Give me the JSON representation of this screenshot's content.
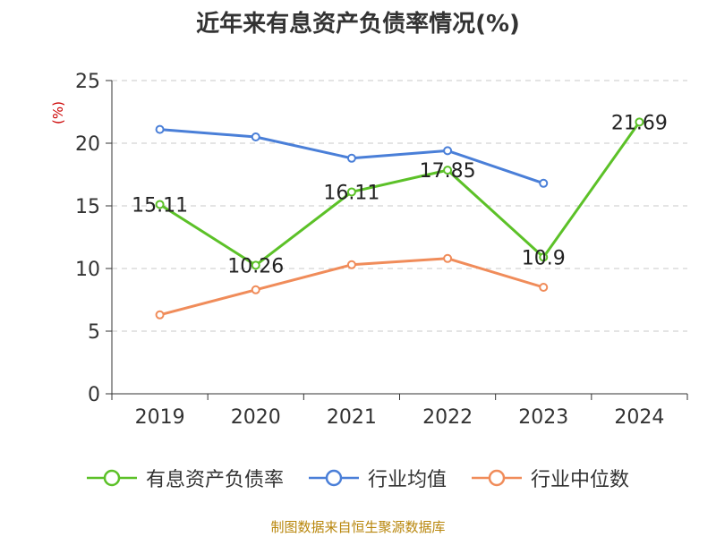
{
  "chart_data": {
    "type": "line",
    "title": "近年来有息资产负债率情况(%)",
    "ylabel": "(%)",
    "xlabel": "",
    "categories": [
      "2019",
      "2020",
      "2021",
      "2022",
      "2023",
      "2024"
    ],
    "ylim": [
      0,
      25
    ],
    "yticks": [
      0,
      5,
      10,
      15,
      20,
      25
    ],
    "grid": "horizontal-dashed",
    "legend_position": "bottom",
    "series": [
      {
        "name": "有息资产负债率",
        "color": "#5cc128",
        "values": [
          15.11,
          10.26,
          16.11,
          17.85,
          10.9,
          21.69
        ],
        "labels": [
          "15.11",
          "10.26",
          "16.11",
          "17.85",
          "10.9",
          "21.69"
        ]
      },
      {
        "name": "行业均值",
        "color": "#4a7fd8",
        "values": [
          21.1,
          20.5,
          18.8,
          19.4,
          16.8,
          null
        ]
      },
      {
        "name": "行业中位数",
        "color": "#f08c5a",
        "values": [
          6.3,
          8.3,
          10.3,
          10.8,
          8.5,
          null
        ]
      }
    ],
    "source": "制图数据来自恒生聚源数据库"
  }
}
